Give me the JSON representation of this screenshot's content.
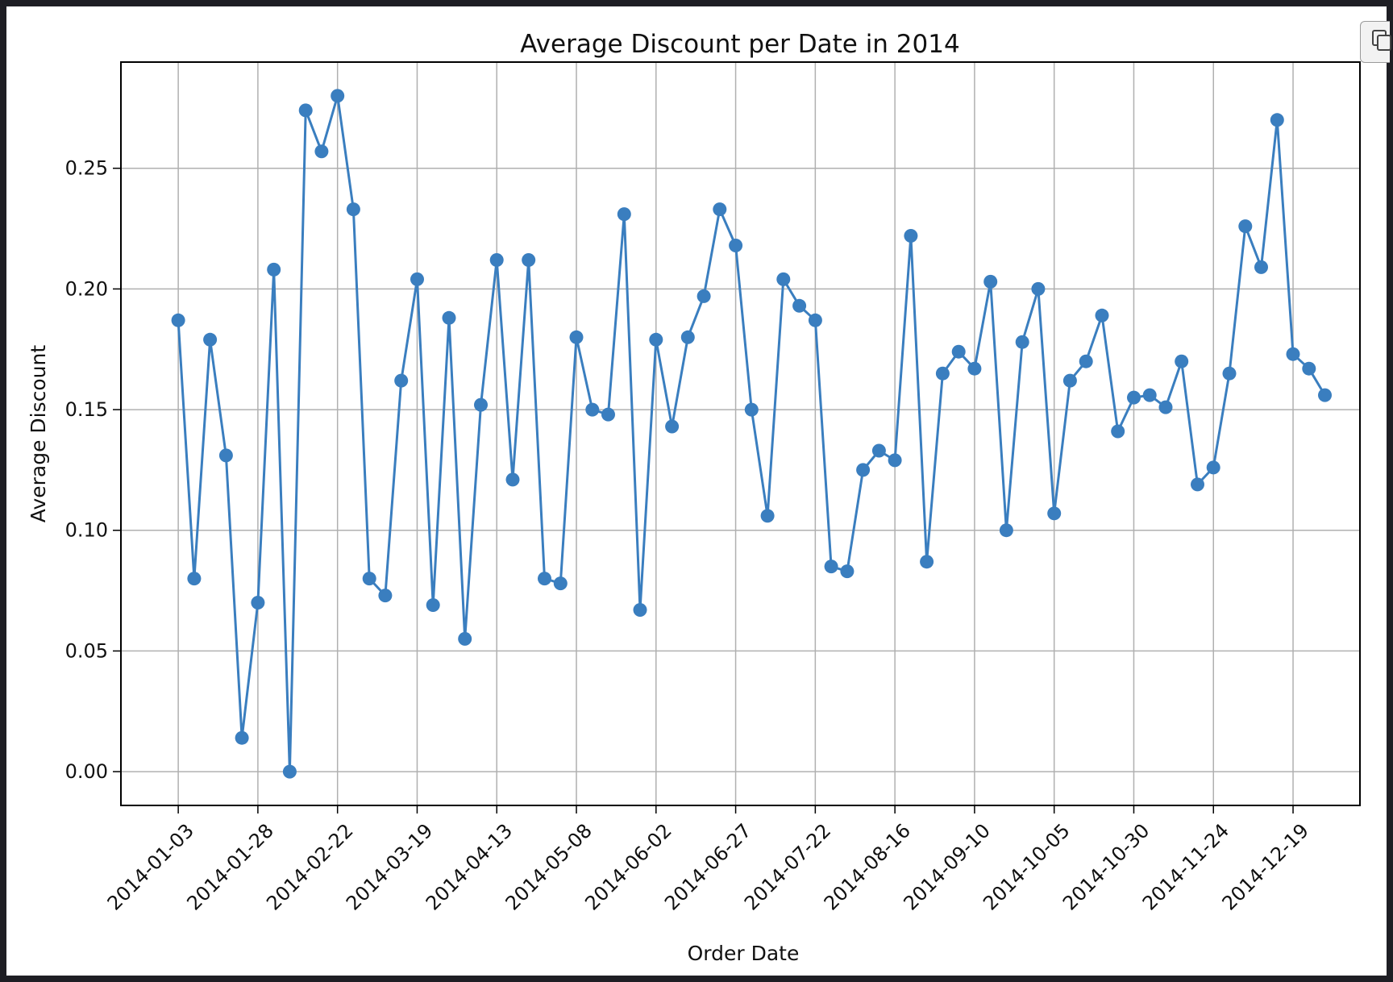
{
  "chart_data": {
    "type": "line",
    "title": "Average Discount per Date in 2014",
    "xlabel": "Order Date",
    "ylabel": "Average Discount",
    "x_ticks": [
      "2014-01-03",
      "2014-01-28",
      "2014-02-22",
      "2014-03-19",
      "2014-04-13",
      "2014-05-08",
      "2014-06-02",
      "2014-06-27",
      "2014-07-22",
      "2014-08-16",
      "2014-09-10",
      "2014-10-05",
      "2014-10-30",
      "2014-11-24",
      "2014-12-19"
    ],
    "y_ticks": [
      "0.00",
      "0.05",
      "0.10",
      "0.15",
      "0.20",
      "0.25"
    ],
    "xlim": [
      "2013-12-16",
      "2015-01-09"
    ],
    "ylim": [
      -0.014,
      0.294
    ],
    "grid": true,
    "series_color": "#3a7ebf",
    "x": [
      "2014-01-03",
      "2014-01-08",
      "2014-01-13",
      "2014-01-18",
      "2014-01-23",
      "2014-01-28",
      "2014-02-02",
      "2014-02-07",
      "2014-02-12",
      "2014-02-17",
      "2014-02-22",
      "2014-02-27",
      "2014-03-04",
      "2014-03-09",
      "2014-03-14",
      "2014-03-19",
      "2014-03-24",
      "2014-03-29",
      "2014-04-03",
      "2014-04-08",
      "2014-04-13",
      "2014-04-18",
      "2014-04-23",
      "2014-04-28",
      "2014-05-03",
      "2014-05-08",
      "2014-05-13",
      "2014-05-18",
      "2014-05-23",
      "2014-05-28",
      "2014-06-02",
      "2014-06-07",
      "2014-06-12",
      "2014-06-17",
      "2014-06-22",
      "2014-06-27",
      "2014-07-02",
      "2014-07-07",
      "2014-07-12",
      "2014-07-17",
      "2014-07-22",
      "2014-07-27",
      "2014-08-01",
      "2014-08-06",
      "2014-08-11",
      "2014-08-16",
      "2014-08-21",
      "2014-08-26",
      "2014-08-31",
      "2014-09-05",
      "2014-09-10",
      "2014-09-15",
      "2014-09-20",
      "2014-09-25",
      "2014-09-30",
      "2014-10-05",
      "2014-10-10",
      "2014-10-15",
      "2014-10-20",
      "2014-10-25",
      "2014-10-30",
      "2014-11-04",
      "2014-11-09",
      "2014-11-14",
      "2014-11-19",
      "2014-11-24",
      "2014-11-29",
      "2014-12-04",
      "2014-12-09",
      "2014-12-14",
      "2014-12-19",
      "2014-12-24",
      "2014-12-29"
    ],
    "values": [
      0.187,
      0.08,
      0.179,
      0.131,
      0.014,
      0.07,
      0.208,
      0.0,
      0.274,
      0.257,
      0.28,
      0.233,
      0.08,
      0.073,
      0.162,
      0.204,
      0.069,
      0.188,
      0.055,
      0.152,
      0.212,
      0.121,
      0.212,
      0.08,
      0.078,
      0.18,
      0.15,
      0.148,
      0.231,
      0.067,
      0.179,
      0.143,
      0.18,
      0.197,
      0.233,
      0.218,
      0.15,
      0.106,
      0.204,
      0.193,
      0.187,
      0.085,
      0.083,
      0.125,
      0.133,
      0.129,
      0.222,
      0.087,
      0.165,
      0.174,
      0.167,
      0.203,
      0.1,
      0.178,
      0.2,
      0.107,
      0.162,
      0.17,
      0.189,
      0.141,
      0.155,
      0.156,
      0.151,
      0.17,
      0.119,
      0.126,
      0.165,
      0.226,
      0.209,
      0.27,
      0.173,
      0.167,
      0.156
    ]
  }
}
